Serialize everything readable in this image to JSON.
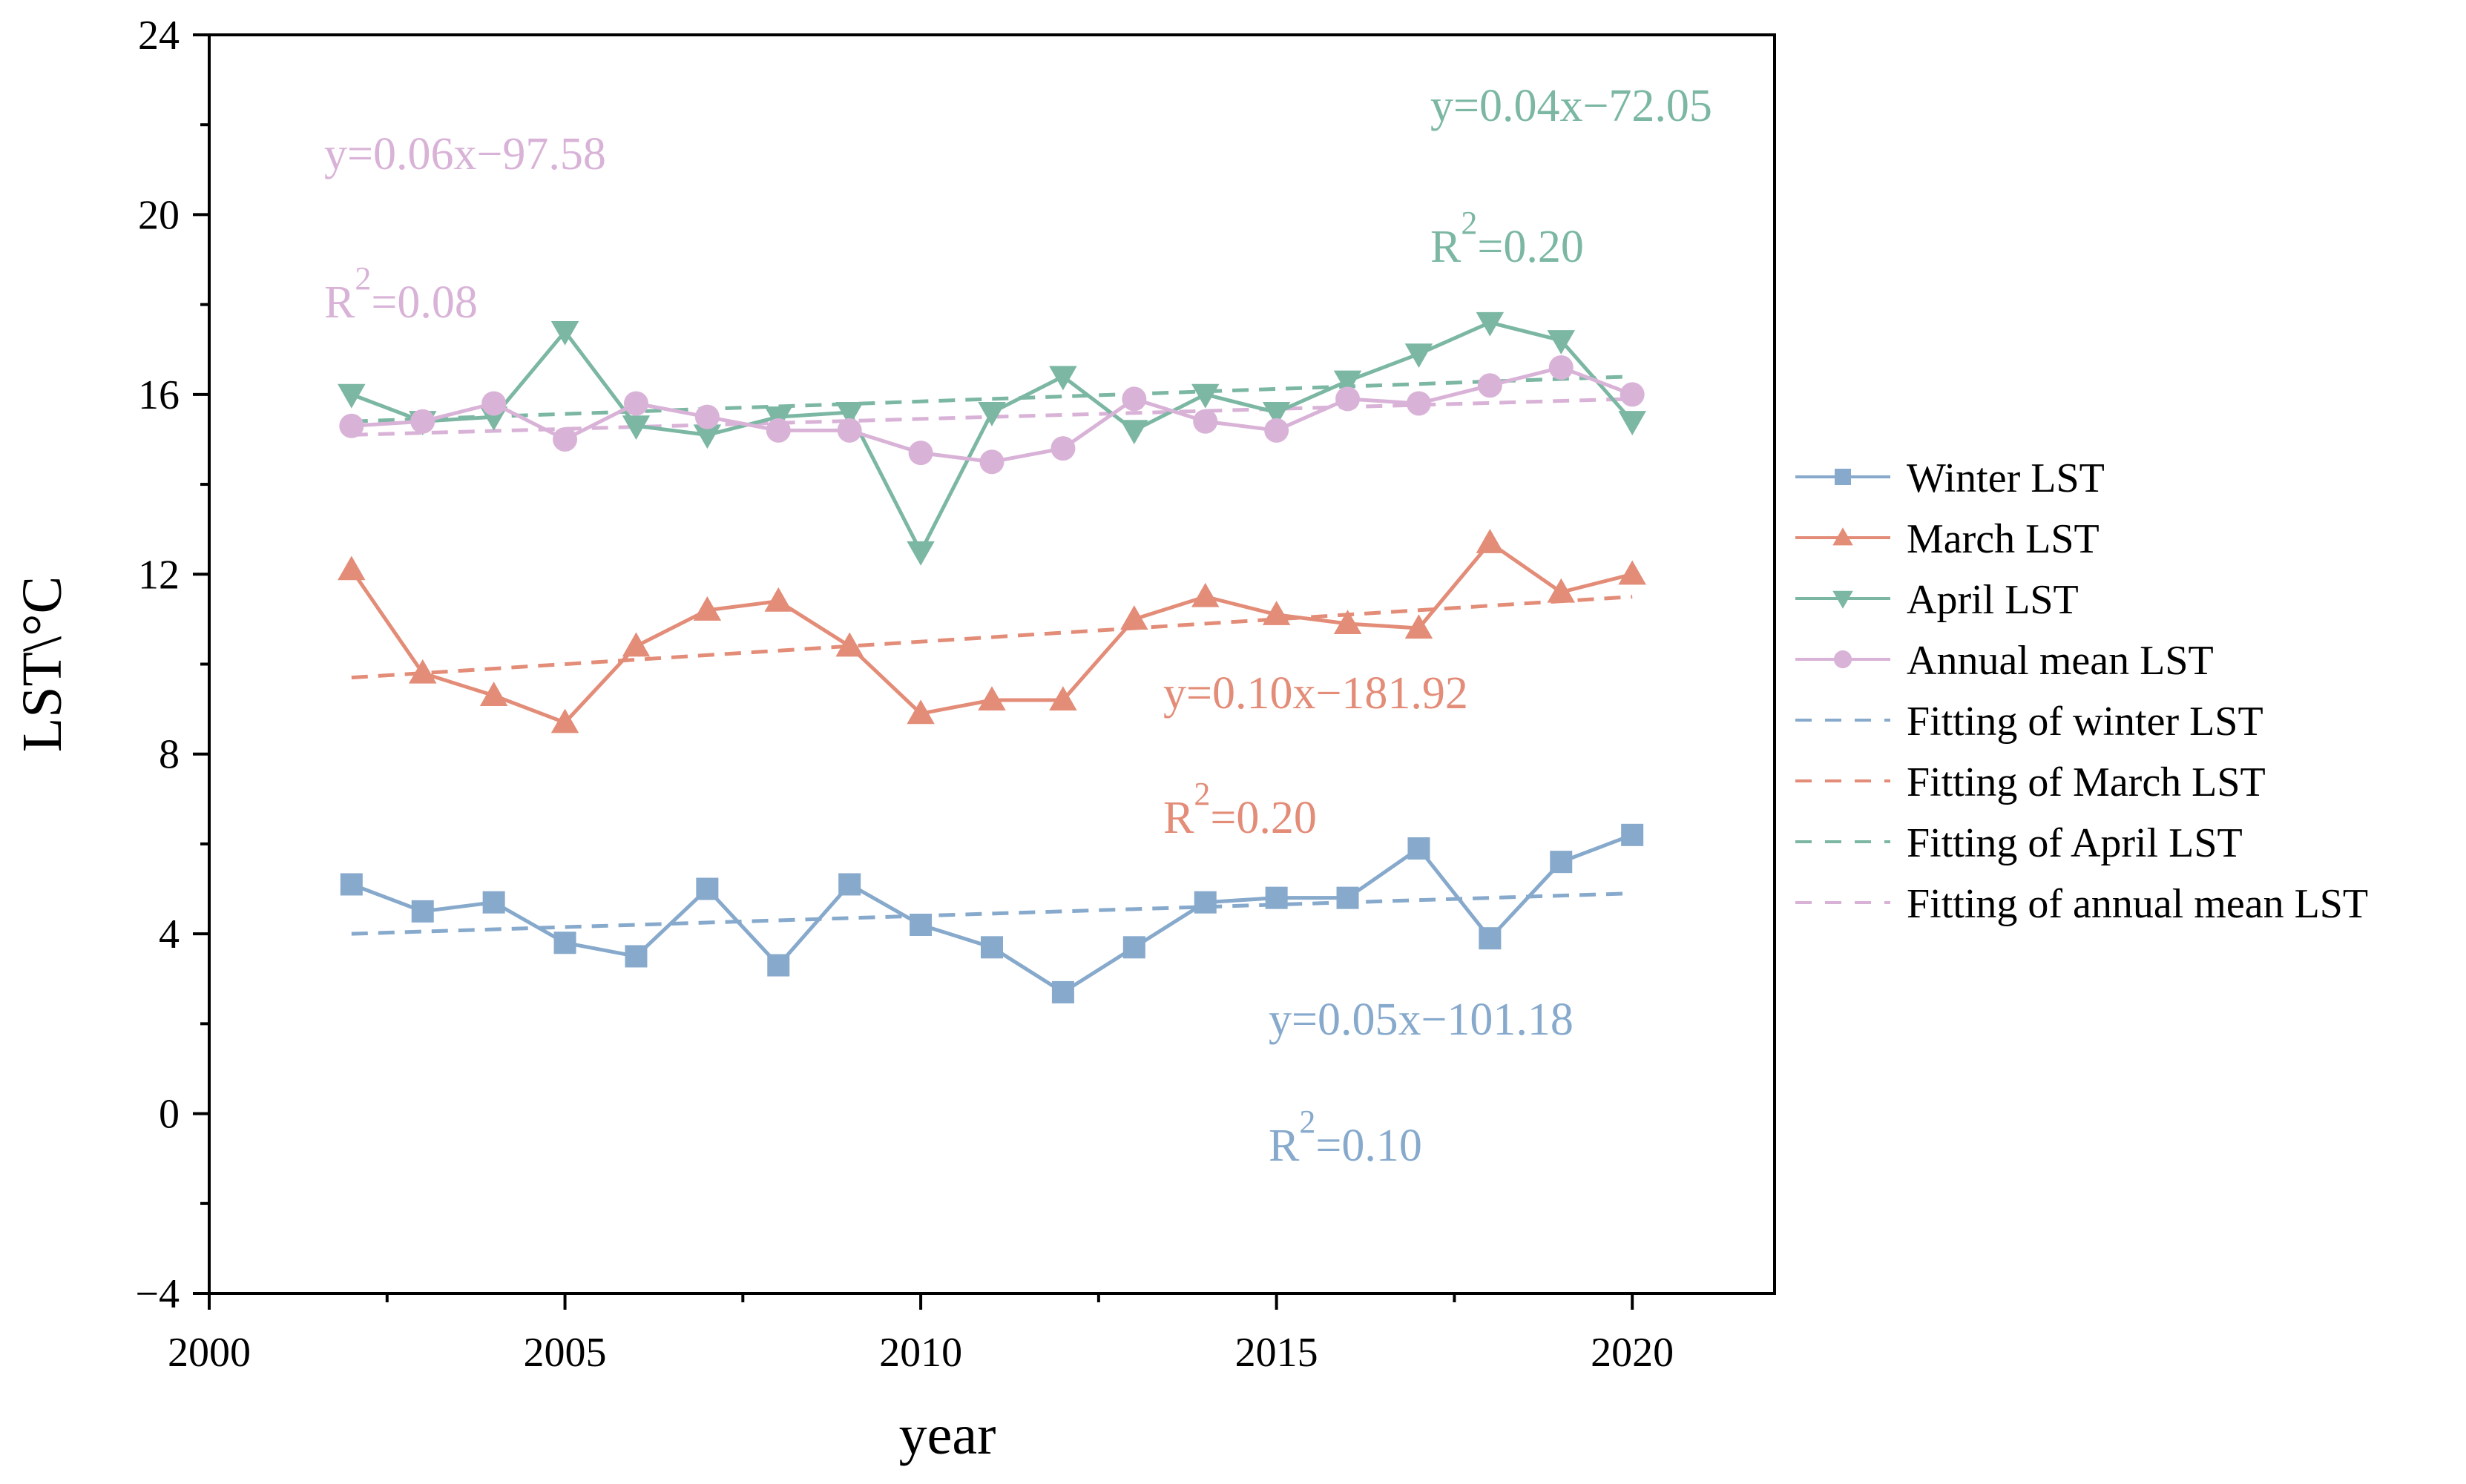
{
  "chart_data": {
    "type": "line",
    "title": "",
    "xlabel": "year",
    "ylabel": "LST\\°C",
    "xlim": [
      2000,
      2022
    ],
    "ylim": [
      -4,
      24
    ],
    "x_ticks": [
      2000,
      2005,
      2010,
      2015,
      2020
    ],
    "x_tick_labels": [
      "2000",
      "2005",
      "2010",
      "2015",
      "2020"
    ],
    "y_ticks": [
      -4,
      0,
      4,
      8,
      12,
      16,
      20,
      24
    ],
    "y_tick_labels": [
      "−4",
      "0",
      "4",
      "8",
      "12",
      "16",
      "20",
      "24"
    ],
    "x": [
      2002,
      2003,
      2004,
      2005,
      2006,
      2007,
      2008,
      2009,
      2010,
      2011,
      2012,
      2013,
      2014,
      2015,
      2016,
      2017,
      2018,
      2019,
      2020
    ],
    "series": [
      {
        "name": "Winter LST",
        "color": "#86a9cc",
        "marker": "square",
        "values": [
          5.1,
          4.5,
          4.7,
          3.8,
          3.5,
          5.0,
          3.3,
          5.1,
          4.2,
          3.7,
          2.7,
          3.7,
          4.7,
          4.8,
          4.8,
          5.9,
          3.9,
          5.6,
          6.2
        ]
      },
      {
        "name": "March LST",
        "color": "#e38c78",
        "marker": "triangle-up",
        "values": [
          12.1,
          9.8,
          9.3,
          8.7,
          10.4,
          11.2,
          11.4,
          10.4,
          8.9,
          9.2,
          9.2,
          11.0,
          11.5,
          11.1,
          10.9,
          10.8,
          12.7,
          11.6,
          12.0
        ]
      },
      {
        "name": "April LST",
        "color": "#7bb7a3",
        "marker": "triangle-down",
        "values": [
          16.0,
          15.4,
          15.5,
          17.4,
          15.3,
          15.1,
          15.5,
          15.6,
          12.5,
          15.6,
          16.4,
          15.2,
          16.0,
          15.6,
          16.3,
          16.9,
          17.6,
          17.2,
          15.4
        ]
      },
      {
        "name": "Annual mean LST",
        "color": "#d9b3d7",
        "marker": "circle",
        "values": [
          15.3,
          15.4,
          15.8,
          15.0,
          15.8,
          15.5,
          15.2,
          15.2,
          14.7,
          14.5,
          14.8,
          15.9,
          15.4,
          15.2,
          15.9,
          15.8,
          16.2,
          16.6,
          16.0
        ]
      }
    ],
    "fits": [
      {
        "name": "Fitting of winter LST",
        "color": "#86a9cc",
        "y_start": 4.0,
        "y_end": 4.9,
        "equation": "y=0.05x−101.18",
        "r2_base": "R",
        "r2_sup": "2",
        "r2_value": "=0.10"
      },
      {
        "name": "Fitting of March LST",
        "color": "#e38c78",
        "y_start": 9.7,
        "y_end": 11.5,
        "equation": "y=0.10x−181.92",
        "r2_base": "R",
        "r2_sup": "2",
        "r2_value": "=0.20"
      },
      {
        "name": "Fitting of April LST",
        "color": "#7bb7a3",
        "y_start": 15.4,
        "y_end": 16.4,
        "equation": "y=0.04x−72.05",
        "r2_base": "R",
        "r2_sup": "2",
        "r2_value": "=0.20"
      },
      {
        "name": "Fitting of annual mean LST",
        "color": "#d9b3d7",
        "y_start": 15.1,
        "y_end": 15.9,
        "equation": "y=0.06x−97.58",
        "r2_base": "R",
        "r2_sup": "2",
        "r2_value": "=0.08"
      }
    ],
    "legend_position": "right"
  }
}
